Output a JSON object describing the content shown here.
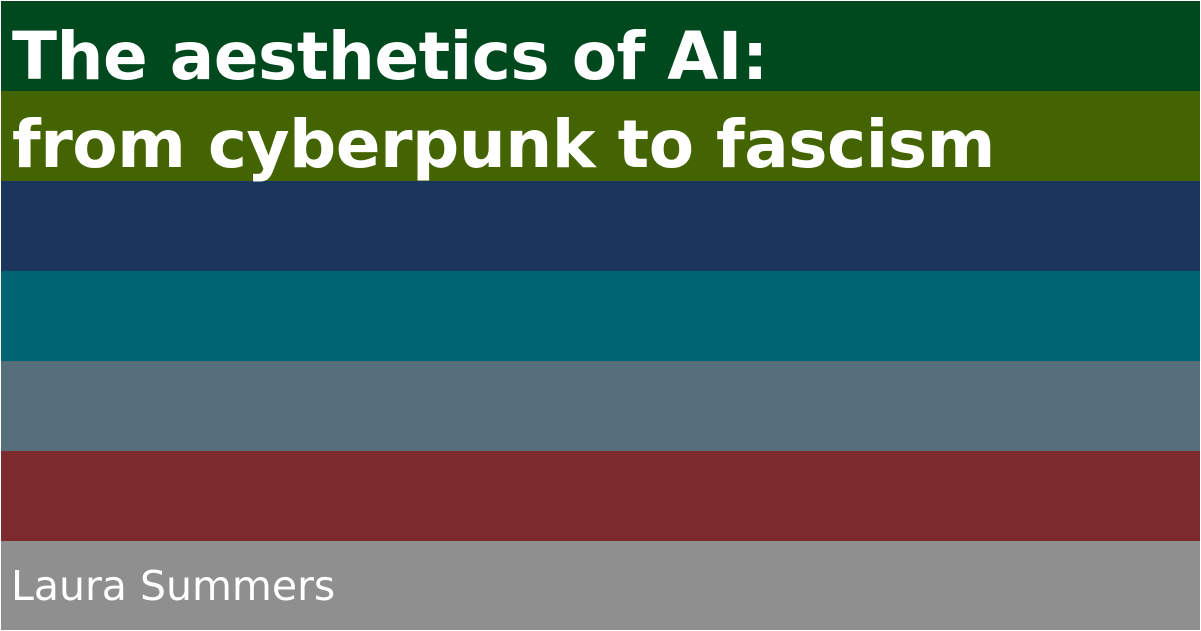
{
  "title": {
    "line1": "The aesthetics of AI:",
    "line2": "from cyberpunk to fascism"
  },
  "author": "Laura Summers",
  "colors": {
    "stripes": [
      "#00491e",
      "#436400",
      "#1b365d",
      "#006472",
      "#546e7a",
      "#7c2a2e",
      "#8f8f8f"
    ],
    "text": "#ffffff",
    "border": "#ffffff"
  }
}
